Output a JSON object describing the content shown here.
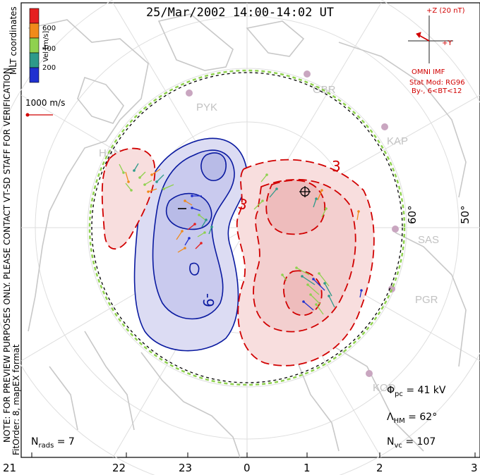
{
  "title": "25/Mar/2002 14:00-14:02 UT",
  "left_notes": {
    "note": "NOTE: FOR PREVIEW PURPOSES ONLY. PLEASE CONTACT VT-SD STAFF FOR VERIFICATION.",
    "fit": "FitOrder: 8, mapEX format",
    "coords": "MLT coordinates"
  },
  "velocity_scale": {
    "label": "Vel [m/s]",
    "ticks": [
      "600",
      "400",
      "200"
    ],
    "colors": [
      "#e52020",
      "#f08a1a",
      "#8fd14f",
      "#2e9a8a",
      "#2030d0"
    ]
  },
  "reference_vector": "1000 m/s",
  "imf": {
    "z_label": "+Z (20 nT)",
    "y_label": "+Y",
    "source": "OMNI IMF",
    "stat_mod": "Stat Mod: RG96",
    "by_bt": "By-, 6<BT<12"
  },
  "stats": {
    "phi_pc": "41 kV",
    "lambda_hm": "62°",
    "n_vc": "107",
    "n_rads": "7"
  },
  "latitude_labels": [
    "60°",
    "50°"
  ],
  "stations": [
    "HAN",
    "PYK",
    "GBR",
    "KAP",
    "SAS",
    "PGR",
    "KOD"
  ],
  "contour_labels": [
    "3",
    "3",
    "-9",
    "-"
  ],
  "mlt_ticks": [
    "21",
    "22",
    "23",
    "0",
    "1",
    "2",
    "3"
  ],
  "colors": {
    "positive_contour": "#d10000",
    "negative_contour": "#0a1aa0",
    "boundary_dash": "#8fd14f",
    "land_outline": "#c8c8c8"
  }
}
